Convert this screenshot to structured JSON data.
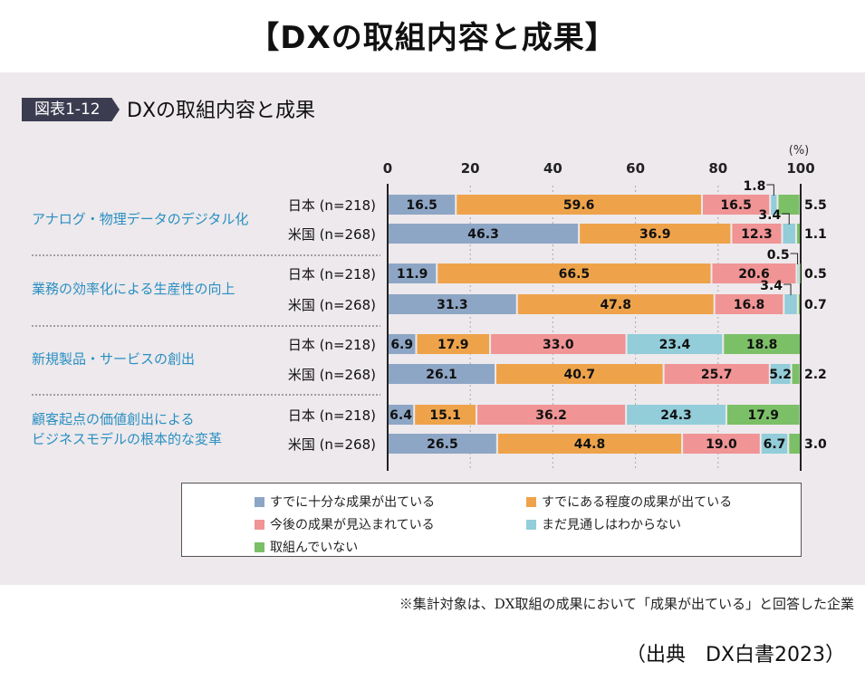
{
  "header": {
    "title": "【DXの取組内容と成果】"
  },
  "figure": {
    "tag": "図表1-12",
    "title": "DXの取組内容と成果"
  },
  "footnote": "※集計対象は、DX取組の成果において「成果が出ている」と回答した企業",
  "source": "（出典　DX白書2023）",
  "chart_data": {
    "type": "bar",
    "orientation": "horizontal-stacked-100",
    "title": "DXの取組内容と成果",
    "unit_label": "(%)",
    "xlim": [
      0,
      100
    ],
    "xticks": [
      "0",
      "20",
      "40",
      "60",
      "80",
      "100"
    ],
    "grid": true,
    "legend_position": "bottom",
    "series_names": [
      "すでに十分な成果が出ている",
      "すでにある程度の成果が出ている",
      "今後の成果が見込まれている",
      "まだ見通しはわからない",
      "取組んでいない"
    ],
    "colors": [
      "#8ea6c5",
      "#eea34b",
      "#f09495",
      "#92cdd9",
      "#7bc067"
    ],
    "groups": [
      {
        "label": "アナログ・物理データのデジタル化",
        "rows": [
          {
            "label": "日本 (n=218)",
            "values": [
              16.5,
              59.6,
              16.5,
              1.8,
              5.5
            ]
          },
          {
            "label": "米国 (n=268)",
            "values": [
              46.3,
              36.9,
              12.3,
              3.4,
              1.1
            ]
          }
        ]
      },
      {
        "label": "業務の効率化による生産性の向上",
        "rows": [
          {
            "label": "日本 (n=218)",
            "values": [
              11.9,
              66.5,
              20.6,
              0.5,
              0.5
            ]
          },
          {
            "label": "米国 (n=268)",
            "values": [
              31.3,
              47.8,
              16.8,
              3.4,
              0.7
            ]
          }
        ]
      },
      {
        "label": "新規製品・サービスの創出",
        "rows": [
          {
            "label": "日本 (n=218)",
            "values": [
              6.9,
              17.9,
              33.0,
              23.4,
              18.8
            ]
          },
          {
            "label": "米国 (n=268)",
            "values": [
              26.1,
              40.7,
              25.7,
              5.2,
              2.2
            ]
          }
        ]
      },
      {
        "label": "顧客起点の価値創出による\nビジネスモデルの根本的な変革",
        "label_lines": [
          "顧客起点の価値創出による",
          "ビジネスモデルの根本的な変革"
        ],
        "rows": [
          {
            "label": "日本 (n=218)",
            "values": [
              6.4,
              15.1,
              36.2,
              24.3,
              17.9
            ]
          },
          {
            "label": "米国 (n=268)",
            "values": [
              26.5,
              44.8,
              19.0,
              6.7,
              3.0
            ]
          }
        ]
      }
    ]
  }
}
